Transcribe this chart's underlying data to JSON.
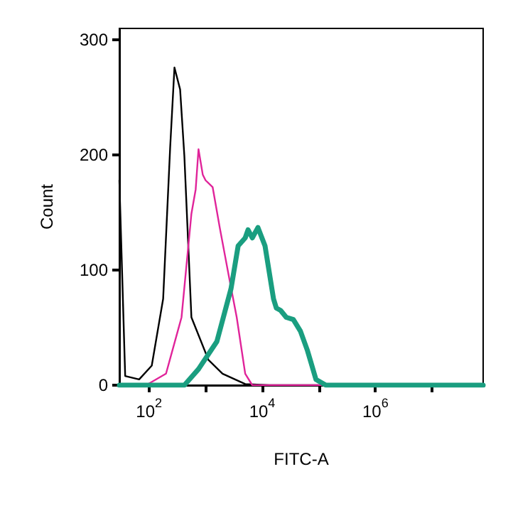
{
  "chart_data": {
    "type": "line",
    "xlabel": "FITC-A",
    "ylabel": "Count",
    "log": "x",
    "xlim": [
      30,
      80000000
    ],
    "ylim": [
      0,
      310
    ],
    "xticks": [
      {
        "value": 100,
        "label": "10$^{2}$"
      },
      {
        "value": 1000,
        "label": null
      },
      {
        "value": 10000,
        "label": "10$^{4}$"
      },
      {
        "value": 100000,
        "label": null
      },
      {
        "value": 1000000,
        "label": "10$^{6}$"
      },
      {
        "value": 10000000,
        "label": null
      }
    ],
    "yticks": [
      0,
      100,
      200,
      300
    ],
    "grid": false,
    "marker": "none",
    "line_style": "solid",
    "series": [
      {
        "color": "#000000",
        "x": [
          30,
          38,
          67,
          112,
          178,
          237,
          282,
          355,
          422,
          562,
          1122,
          1995,
          5012,
          13335,
          80000000
        ],
        "values": [
          178,
          8,
          5,
          17,
          75,
          207,
          276,
          257,
          199,
          59,
          22,
          10,
          1,
          0,
          0
        ]
      },
      {
        "color": "#e0249a",
        "x": [
          30,
          89,
          200,
          376,
          562,
          668,
          750,
          891,
          1000,
          1334,
          1778,
          2661,
          3548,
          5012,
          6683,
          80000000
        ],
        "values": [
          0,
          0,
          10,
          59,
          149,
          170,
          205,
          183,
          178,
          172,
          137,
          91,
          59,
          10,
          0,
          0
        ]
      },
      {
        "color": "#1a9e80",
        "x": [
          30,
          422,
          750,
          1585,
          2818,
          3758,
          5012,
          5623,
          6683,
          8414,
          11220,
          15849,
          17783,
          21135,
          26607,
          35481,
          47315,
          63096,
          89125,
          133352,
          80000000
        ],
        "values": [
          0,
          0,
          14,
          38,
          84,
          121,
          128,
          135,
          128,
          137,
          121,
          75,
          67,
          65,
          59,
          57,
          47,
          30,
          5,
          0,
          0
        ]
      }
    ]
  }
}
